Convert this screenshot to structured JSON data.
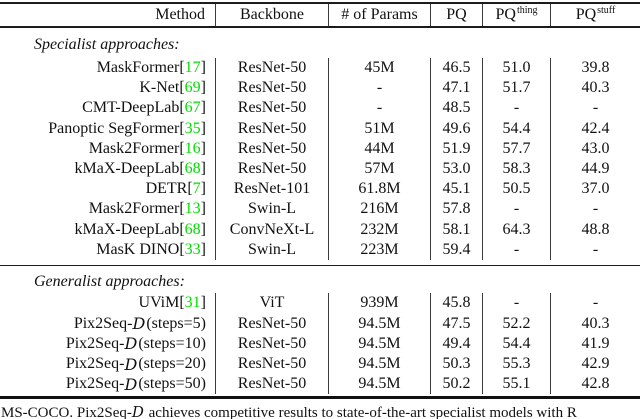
{
  "colors": {
    "citation": "#00dd00",
    "text": "#111111",
    "rule": "#1c1c1c"
  },
  "symbols": {
    "cite_open": " [",
    "cite_close": "]"
  },
  "table": {
    "columns": [
      {
        "label": "Method",
        "sup": ""
      },
      {
        "label": "Backbone",
        "sup": ""
      },
      {
        "label": "# of Params",
        "sup": ""
      },
      {
        "label": "PQ",
        "sup": ""
      },
      {
        "label": "PQ",
        "sup": "thing"
      },
      {
        "label": "PQ",
        "sup": "stuff"
      }
    ],
    "sections": [
      {
        "label": "Specialist approaches:",
        "rows": [
          {
            "method": "MaskFormer",
            "cite": "17",
            "backbone": "ResNet-50",
            "params": "45M",
            "pq": "46.5",
            "pq_thing": "51.0",
            "pq_stuff": "39.8"
          },
          {
            "method": "K-Net",
            "cite": "69",
            "backbone": "ResNet-50",
            "params": "-",
            "pq": "47.1",
            "pq_thing": "51.7",
            "pq_stuff": "40.3"
          },
          {
            "method": "CMT-DeepLab",
            "cite": "67",
            "backbone": "ResNet-50",
            "params": "-",
            "pq": "48.5",
            "pq_thing": "-",
            "pq_stuff": "-"
          },
          {
            "method": "Panoptic SegFormer",
            "cite": "35",
            "backbone": "ResNet-50",
            "params": "51M",
            "pq": "49.6",
            "pq_thing": "54.4",
            "pq_stuff": "42.4"
          },
          {
            "method": "Mask2Former",
            "cite": "16",
            "backbone": "ResNet-50",
            "params": "44M",
            "pq": "51.9",
            "pq_thing": "57.7",
            "pq_stuff": "43.0"
          },
          {
            "method": "kMaX-DeepLab",
            "cite": "68",
            "backbone": "ResNet-50",
            "params": "57M",
            "pq": "53.0",
            "pq_thing": "58.3",
            "pq_stuff": "44.9"
          },
          {
            "method": "DETR",
            "cite": "7",
            "backbone": "ResNet-101",
            "params": "61.8M",
            "pq": "45.1",
            "pq_thing": "50.5",
            "pq_stuff": "37.0"
          },
          {
            "method": "Mask2Former",
            "cite": "13",
            "backbone": "Swin-L",
            "params": "216M",
            "pq": "57.8",
            "pq_thing": "-",
            "pq_stuff": "-"
          },
          {
            "method": "kMaX-DeepLab",
            "cite": "68",
            "backbone": "ConvNeXt-L",
            "params": "232M",
            "pq": "58.1",
            "pq_thing": "64.3",
            "pq_stuff": "48.8"
          },
          {
            "method": "MasK DINO",
            "cite": "33",
            "backbone": "Swin-L",
            "params": "223M",
            "pq": "59.4",
            "pq_thing": "-",
            "pq_stuff": "-"
          }
        ]
      },
      {
        "label": "Generalist approaches:",
        "rows": [
          {
            "method": "UViM",
            "cite": "31",
            "backbone": "ViT",
            "params": "939M",
            "pq": "45.8",
            "pq_thing": "-",
            "pq_stuff": "-"
          },
          {
            "method": "Pix2Seq-",
            "script_d": "D",
            "method_suffix": " (steps=5)",
            "cite": null,
            "backbone": "ResNet-50",
            "params": "94.5M",
            "pq": "47.5",
            "pq_thing": "52.2",
            "pq_stuff": "40.3"
          },
          {
            "method": "Pix2Seq-",
            "script_d": "D",
            "method_suffix": " (steps=10)",
            "cite": null,
            "backbone": "ResNet-50",
            "params": "94.5M",
            "pq": "49.4",
            "pq_thing": "54.4",
            "pq_stuff": "41.9"
          },
          {
            "method": "Pix2Seq-",
            "script_d": "D",
            "method_suffix": " (steps=20)",
            "cite": null,
            "backbone": "ResNet-50",
            "params": "94.5M",
            "pq": "50.3",
            "pq_thing": "55.3",
            "pq_stuff": "42.9"
          },
          {
            "method": "Pix2Seq-",
            "script_d": "D",
            "method_suffix": " (steps=50)",
            "cite": null,
            "backbone": "ResNet-50",
            "params": "94.5M",
            "pq": "50.2",
            "pq_thing": "55.1",
            "pq_stuff": "42.8"
          }
        ]
      }
    ]
  },
  "caption": {
    "pre": "MS-COCO. Pix2Seq-",
    "script_d": "D",
    "post": " achieves competitive results to state-of-the-art specialist models with R"
  }
}
